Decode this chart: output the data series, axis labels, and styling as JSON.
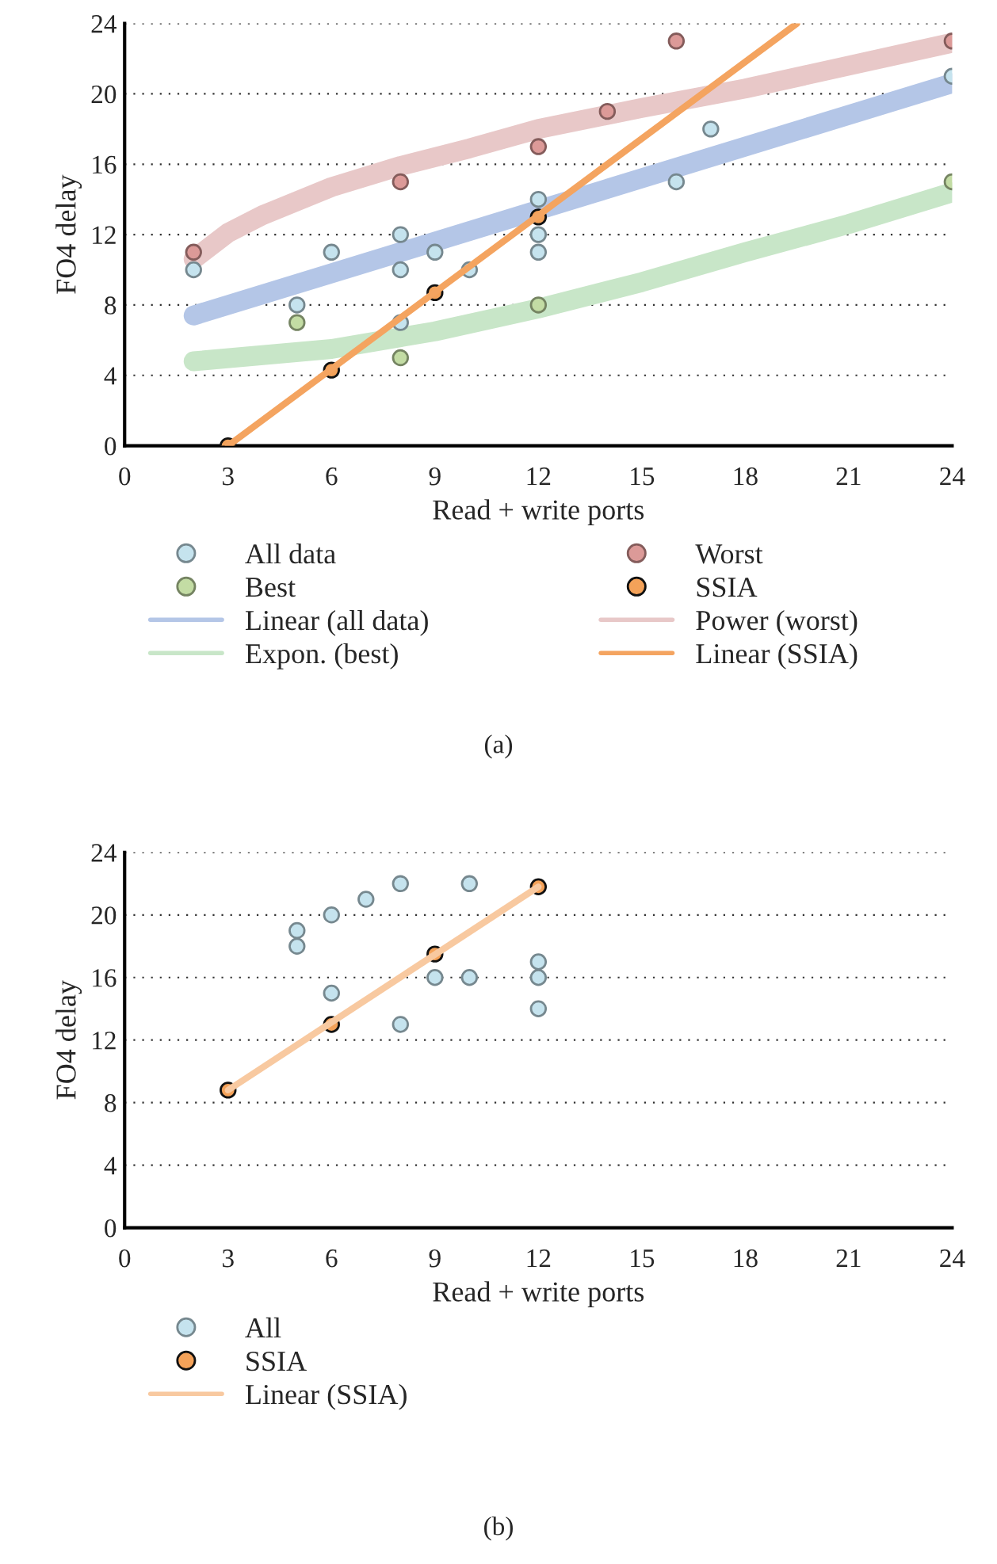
{
  "chart_data": [
    {
      "type": "scatter",
      "xlabel": "Read + write ports",
      "ylabel": "FO4 delay",
      "xlim": [
        0,
        24
      ],
      "ylim": [
        0,
        24
      ],
      "xticks": [
        0,
        3,
        6,
        9,
        12,
        15,
        18,
        21,
        24
      ],
      "yticks": [
        0,
        4,
        8,
        12,
        16,
        20,
        24
      ],
      "grid": "y",
      "legend": "bottom",
      "annotations": [
        "(a)"
      ],
      "series": [
        {
          "name": "All data",
          "marker": "circle",
          "color": "#c5e3ee",
          "x": [
            2,
            5,
            6,
            8,
            8,
            8,
            9,
            10,
            12,
            12,
            12,
            16,
            17,
            24
          ],
          "values": [
            10,
            8,
            11,
            12,
            10,
            7,
            11,
            10,
            14,
            12,
            11,
            15,
            18,
            21
          ]
        },
        {
          "name": "Best",
          "marker": "circle",
          "color": "#c3dca4",
          "x": [
            5,
            8,
            12,
            24
          ],
          "values": [
            7,
            5,
            8,
            15
          ]
        },
        {
          "name": "Linear (all data)",
          "type": "line",
          "marker": "none",
          "color": "#b4c6e7",
          "x": [
            2,
            24
          ],
          "values": [
            7.4,
            20.6
          ]
        },
        {
          "name": "Expon. (best)",
          "type": "line",
          "marker": "none",
          "color": "#c8e6c8",
          "x": [
            2,
            6,
            9,
            12,
            15,
            18,
            21,
            24
          ],
          "values": [
            4.8,
            5.5,
            6.5,
            7.8,
            9.3,
            11,
            12.6,
            14.4
          ]
        },
        {
          "name": "Worst",
          "marker": "circle",
          "color": "#dc9a98",
          "x": [
            2,
            8,
            12,
            14,
            16,
            24
          ],
          "values": [
            11,
            15,
            17,
            19,
            23,
            23
          ]
        },
        {
          "name": "SSIA",
          "marker": "circle",
          "color": "#f4a259",
          "x": [
            3,
            6,
            9,
            12
          ],
          "values": [
            0,
            4.3,
            8.7,
            13
          ]
        },
        {
          "name": "Power (worst)",
          "type": "line",
          "marker": "none",
          "color": "#e8c8c8",
          "x": [
            2,
            3,
            4,
            6,
            8,
            10,
            12,
            15,
            18,
            21,
            24
          ],
          "values": [
            10.6,
            12.1,
            13.1,
            14.7,
            15.9,
            16.9,
            18,
            19.2,
            20.3,
            21.6,
            22.9
          ]
        },
        {
          "name": "Linear (SSIA)",
          "type": "line",
          "marker": "none",
          "color": "#f4a460",
          "x": [
            3,
            19.5
          ],
          "values": [
            0,
            24
          ]
        }
      ]
    },
    {
      "type": "scatter",
      "xlabel": "Read + write ports",
      "ylabel": "FO4 delay",
      "xlim": [
        0,
        24
      ],
      "ylim": [
        0,
        24
      ],
      "xticks": [
        0,
        3,
        6,
        9,
        12,
        15,
        18,
        21,
        24
      ],
      "yticks": [
        0,
        4,
        8,
        12,
        16,
        20,
        24
      ],
      "grid": "y",
      "legend": "bottom",
      "annotations": [
        "(b)"
      ],
      "series": [
        {
          "name": "All",
          "marker": "circle",
          "color": "#c5e3ee",
          "x": [
            5,
            5,
            6,
            6,
            7,
            8,
            8,
            9,
            10,
            10,
            12,
            12,
            12
          ],
          "values": [
            19,
            18,
            20,
            15,
            21,
            22,
            13,
            16,
            22,
            16,
            17,
            16,
            14
          ]
        },
        {
          "name": "SSIA",
          "marker": "circle",
          "color": "#f4a259",
          "x": [
            3,
            6,
            9,
            12
          ],
          "values": [
            8.8,
            13,
            17.5,
            21.8
          ]
        },
        {
          "name": "Linear (SSIA)",
          "type": "line",
          "marker": "none",
          "color": "#f8c9a0",
          "x": [
            3,
            12
          ],
          "values": [
            8.8,
            21.8
          ]
        }
      ]
    }
  ]
}
